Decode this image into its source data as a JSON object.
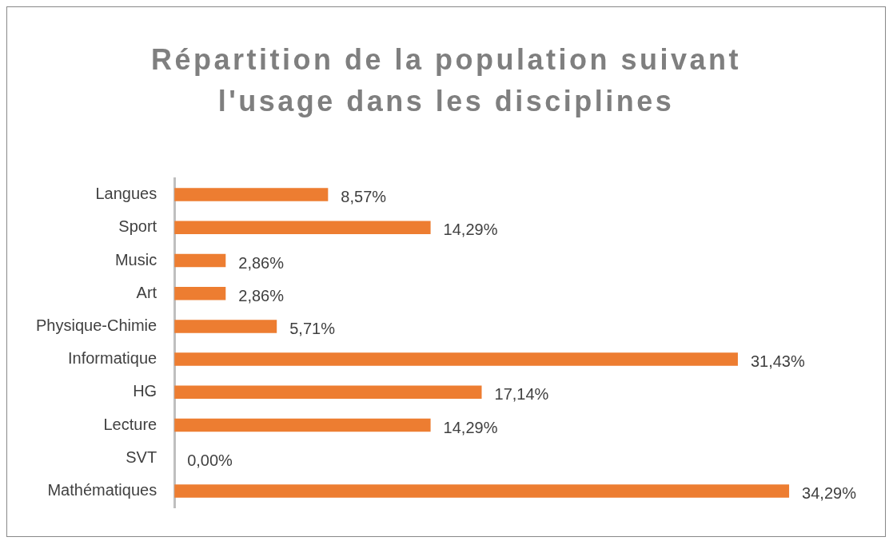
{
  "chart_data": {
    "type": "bar",
    "orientation": "horizontal",
    "title": "Répartition de la population suivant l'usage dans les disciplines",
    "categories": [
      "Langues",
      "Sport",
      "Music",
      "Art",
      "Physique-Chimie",
      "Informatique",
      "HG",
      "Lecture",
      "SVT",
      "Mathématiques"
    ],
    "values": [
      8.57,
      14.29,
      2.86,
      2.86,
      5.71,
      31.43,
      17.14,
      14.29,
      0,
      34.29
    ],
    "value_labels": [
      "8,57%",
      "14,29%",
      "2,86%",
      "2,86%",
      "5,71%",
      "31,43%",
      "17,14%",
      "14,29%",
      "0,00%",
      "34,29%"
    ],
    "color": "#ed7d31",
    "legend": false
  }
}
